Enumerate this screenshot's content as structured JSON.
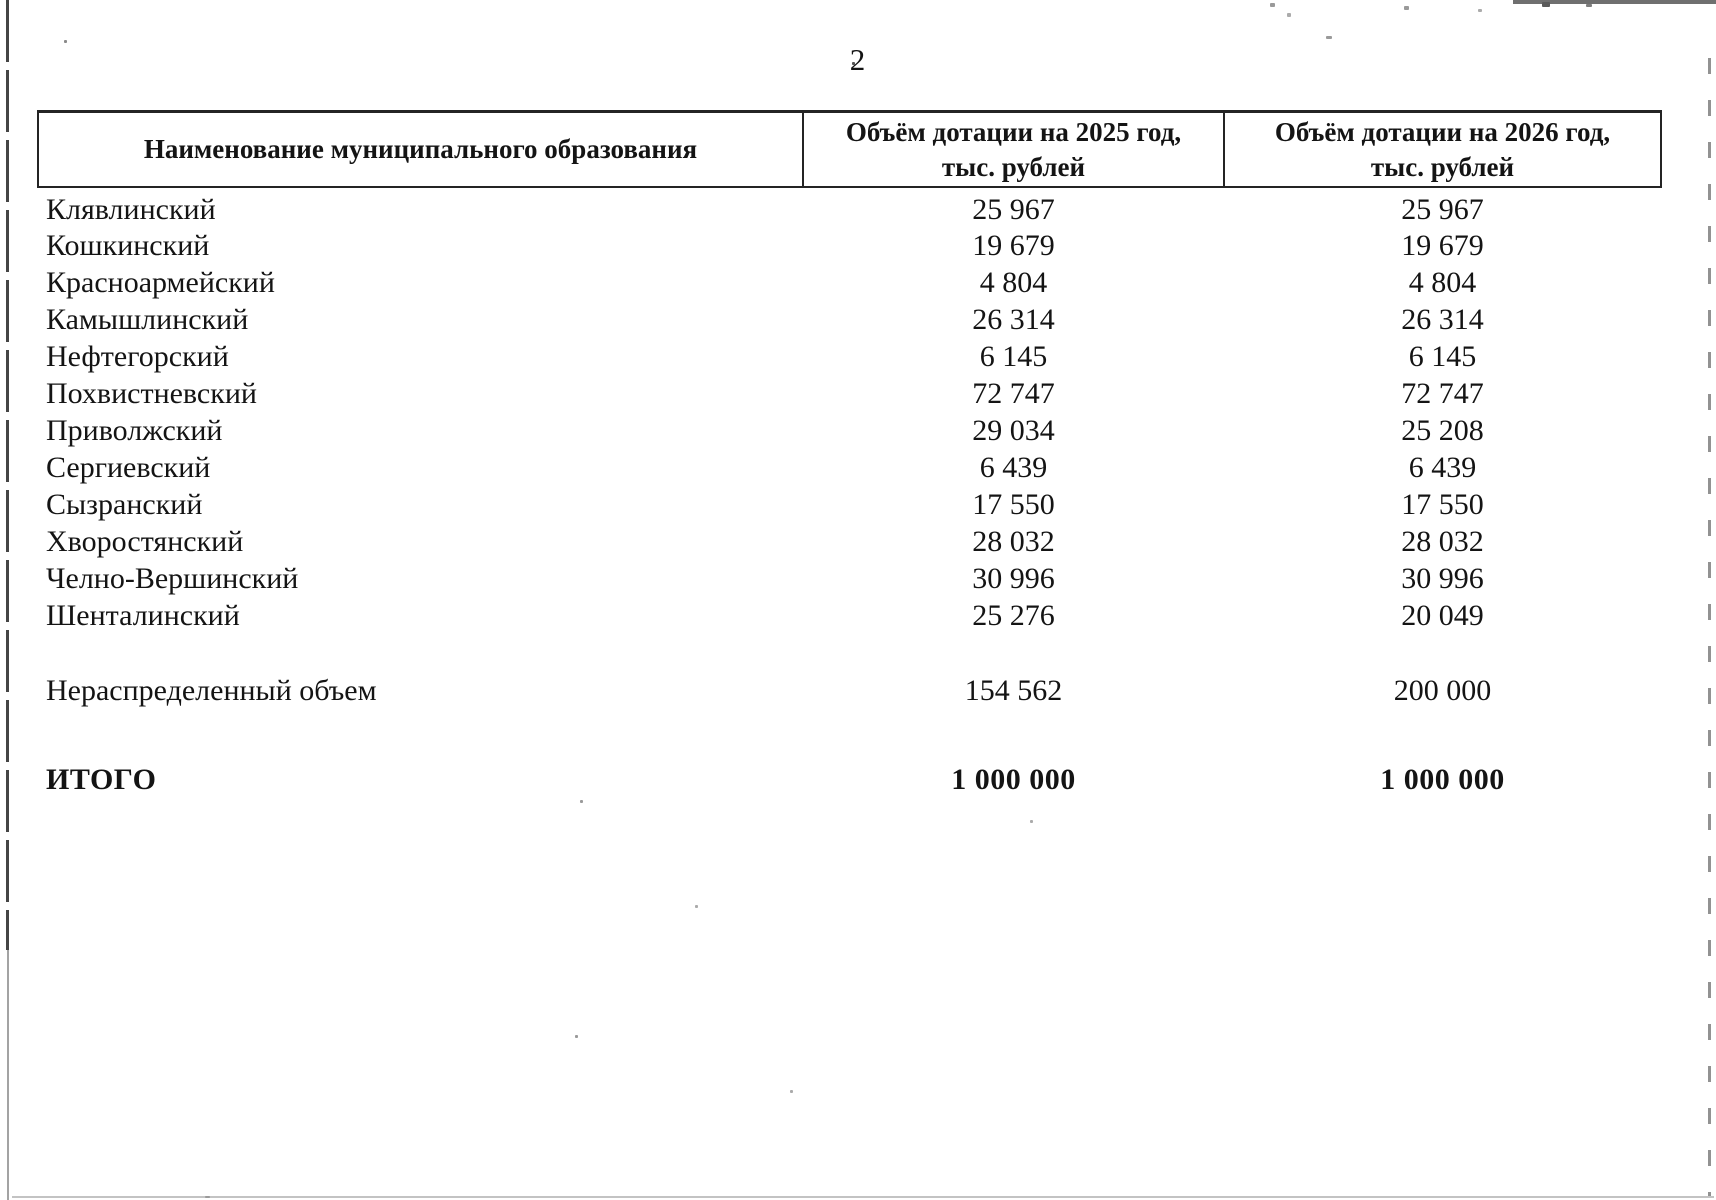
{
  "page": {
    "number": "2"
  },
  "table": {
    "columns": [
      {
        "label": "Наименование муниципального образования"
      },
      {
        "label": "Объём дотации на 2025 год, тыс. рублей"
      },
      {
        "label": "Объём дотации на 2026 год, тыс. рублей"
      }
    ],
    "rows": [
      {
        "name": "Клявлинский",
        "v2025": "25 967",
        "v2026": "25 967"
      },
      {
        "name": "Кошкинский",
        "v2025": "19 679",
        "v2026": "19 679"
      },
      {
        "name": "Красноармейский",
        "v2025": "4 804",
        "v2026": "4 804"
      },
      {
        "name": "Камышлинский",
        "v2025": "26 314",
        "v2026": "26 314"
      },
      {
        "name": "Нефтегорский",
        "v2025": "6 145",
        "v2026": "6 145"
      },
      {
        "name": "Похвистневский",
        "v2025": "72 747",
        "v2026": "72 747"
      },
      {
        "name": "Приволжский",
        "v2025": "29 034",
        "v2026": "25 208"
      },
      {
        "name": "Сергиевский",
        "v2025": "6 439",
        "v2026": "6 439"
      },
      {
        "name": "Сызранский",
        "v2025": "17 550",
        "v2026": "17 550"
      },
      {
        "name": "Хворостянский",
        "v2025": "28 032",
        "v2026": "28 032"
      },
      {
        "name": "Челно-Вершинский",
        "v2025": "30 996",
        "v2026": "30 996"
      },
      {
        "name": "Шенталинский",
        "v2025": "25 276",
        "v2026": "20 049"
      }
    ],
    "undistributed_row": {
      "name": "Нераспределенный объем",
      "v2025": "154 562",
      "v2026": "200 000"
    },
    "total_row": {
      "name": "ИТОГО",
      "v2025": "1 000 000",
      "v2026": "1 000 000"
    }
  }
}
